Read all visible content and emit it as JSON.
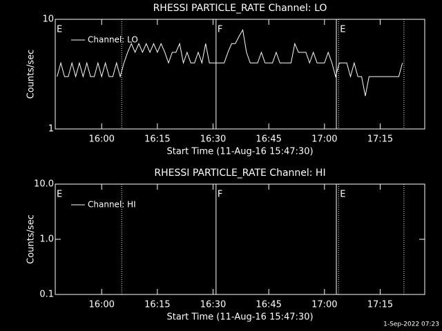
{
  "chart_data": [
    {
      "type": "line",
      "title": "RHESSI PARTICLE_RATE Channel: LO",
      "ylabel": "Counts/sec",
      "xlabel": "Start Time (11-Aug-16 15:47:30)",
      "log_y": true,
      "ylim": [
        1,
        10
      ],
      "yticks": [
        1,
        10
      ],
      "xlim": [
        947.5,
        1047
      ],
      "xticks": [
        {
          "value": 960,
          "label": "16:00"
        },
        {
          "value": 975,
          "label": "16:15"
        },
        {
          "value": 990,
          "label": "16:30"
        },
        {
          "value": 1005,
          "label": "16:45"
        },
        {
          "value": 1020,
          "label": "17:00"
        },
        {
          "value": 1035,
          "label": "17:15"
        }
      ],
      "legend": "upper left",
      "flag_lines": [
        {
          "x": 965.4,
          "style": "dotted"
        },
        {
          "x": 990.8,
          "style": "solid"
        },
        {
          "x": 1023.2,
          "style": "solid"
        },
        {
          "x": 1023.8,
          "style": "dotted"
        },
        {
          "x": 1041.4,
          "style": "dotted"
        }
      ],
      "flag_labels": [
        {
          "x": 947.5,
          "text": "E"
        },
        {
          "x": 990.8,
          "text": "F"
        },
        {
          "x": 1023.8,
          "text": "E"
        }
      ],
      "series": [
        {
          "name": "Channel: LO",
          "color": "#ffffff",
          "x": [
            948,
            949,
            950,
            951,
            952,
            953,
            954,
            955,
            956,
            957,
            958,
            959,
            960,
            961,
            962,
            963,
            964,
            965,
            966,
            967,
            968,
            969,
            970,
            971,
            972,
            973,
            974,
            975,
            976,
            977,
            978,
            979,
            980,
            981,
            982,
            983,
            984,
            985,
            986,
            987,
            988,
            989,
            990,
            991,
            992,
            993,
            994,
            995,
            996,
            997,
            998,
            999,
            1000,
            1001,
            1002,
            1003,
            1004,
            1005,
            1006,
            1007,
            1008,
            1009,
            1010,
            1011,
            1012,
            1013,
            1014,
            1015,
            1016,
            1017,
            1018,
            1019,
            1020,
            1021,
            1022,
            1023,
            1024,
            1025,
            1026,
            1027,
            1028,
            1029,
            1030,
            1031,
            1032,
            1033,
            1034,
            1035,
            1036,
            1037,
            1038,
            1039,
            1040,
            1041
          ],
          "values": [
            3,
            4,
            3,
            3,
            4,
            3,
            4,
            3,
            4,
            3,
            3,
            4,
            3,
            4,
            3,
            3,
            4,
            3,
            4,
            5,
            6,
            5,
            6,
            5,
            6,
            5,
            6,
            5,
            6,
            5,
            4,
            5,
            5,
            6,
            4,
            5,
            4,
            4,
            5,
            4,
            6,
            4,
            4,
            4,
            4,
            4,
            5,
            6,
            6,
            7,
            8,
            5,
            4,
            4,
            4,
            5,
            4,
            4,
            4,
            5,
            4,
            4,
            4,
            4,
            6,
            5,
            5,
            5,
            4,
            5,
            4,
            4,
            4,
            5,
            4,
            3,
            4,
            4,
            4,
            3,
            4,
            3,
            3,
            2,
            3,
            3,
            3,
            3,
            3,
            3,
            3,
            3,
            3,
            4
          ]
        }
      ]
    },
    {
      "type": "line",
      "title": "RHESSI PARTICLE_RATE Channel: HI",
      "ylabel": "Counts/sec",
      "xlabel": "Start Time (11-Aug-16 15:47:30)",
      "log_y": true,
      "ylim": [
        0.1,
        10
      ],
      "yticks": [
        {
          "value": 0.1,
          "label": "0.1"
        },
        {
          "value": 1,
          "label": "1.0"
        },
        {
          "value": 10,
          "label": "10.0"
        }
      ],
      "xlim": [
        947.5,
        1047
      ],
      "xticks": [
        {
          "value": 960,
          "label": "16:00"
        },
        {
          "value": 975,
          "label": "16:15"
        },
        {
          "value": 990,
          "label": "16:30"
        },
        {
          "value": 1005,
          "label": "16:45"
        },
        {
          "value": 1020,
          "label": "17:00"
        },
        {
          "value": 1035,
          "label": "17:15"
        }
      ],
      "legend": "upper left",
      "flag_lines": [
        {
          "x": 965.4,
          "style": "dotted"
        },
        {
          "x": 990.8,
          "style": "solid"
        },
        {
          "x": 1023.2,
          "style": "solid"
        },
        {
          "x": 1023.8,
          "style": "dotted"
        },
        {
          "x": 1041.4,
          "style": "dotted"
        }
      ],
      "flag_labels": [
        {
          "x": 947.5,
          "text": "E"
        },
        {
          "x": 990.8,
          "text": "F"
        },
        {
          "x": 1023.8,
          "text": "E"
        }
      ],
      "series": [
        {
          "name": "Channel: HI",
          "color": "#ffffff",
          "x": [],
          "values": []
        }
      ]
    }
  ],
  "timestamp": "1-Sep-2022 07:23"
}
